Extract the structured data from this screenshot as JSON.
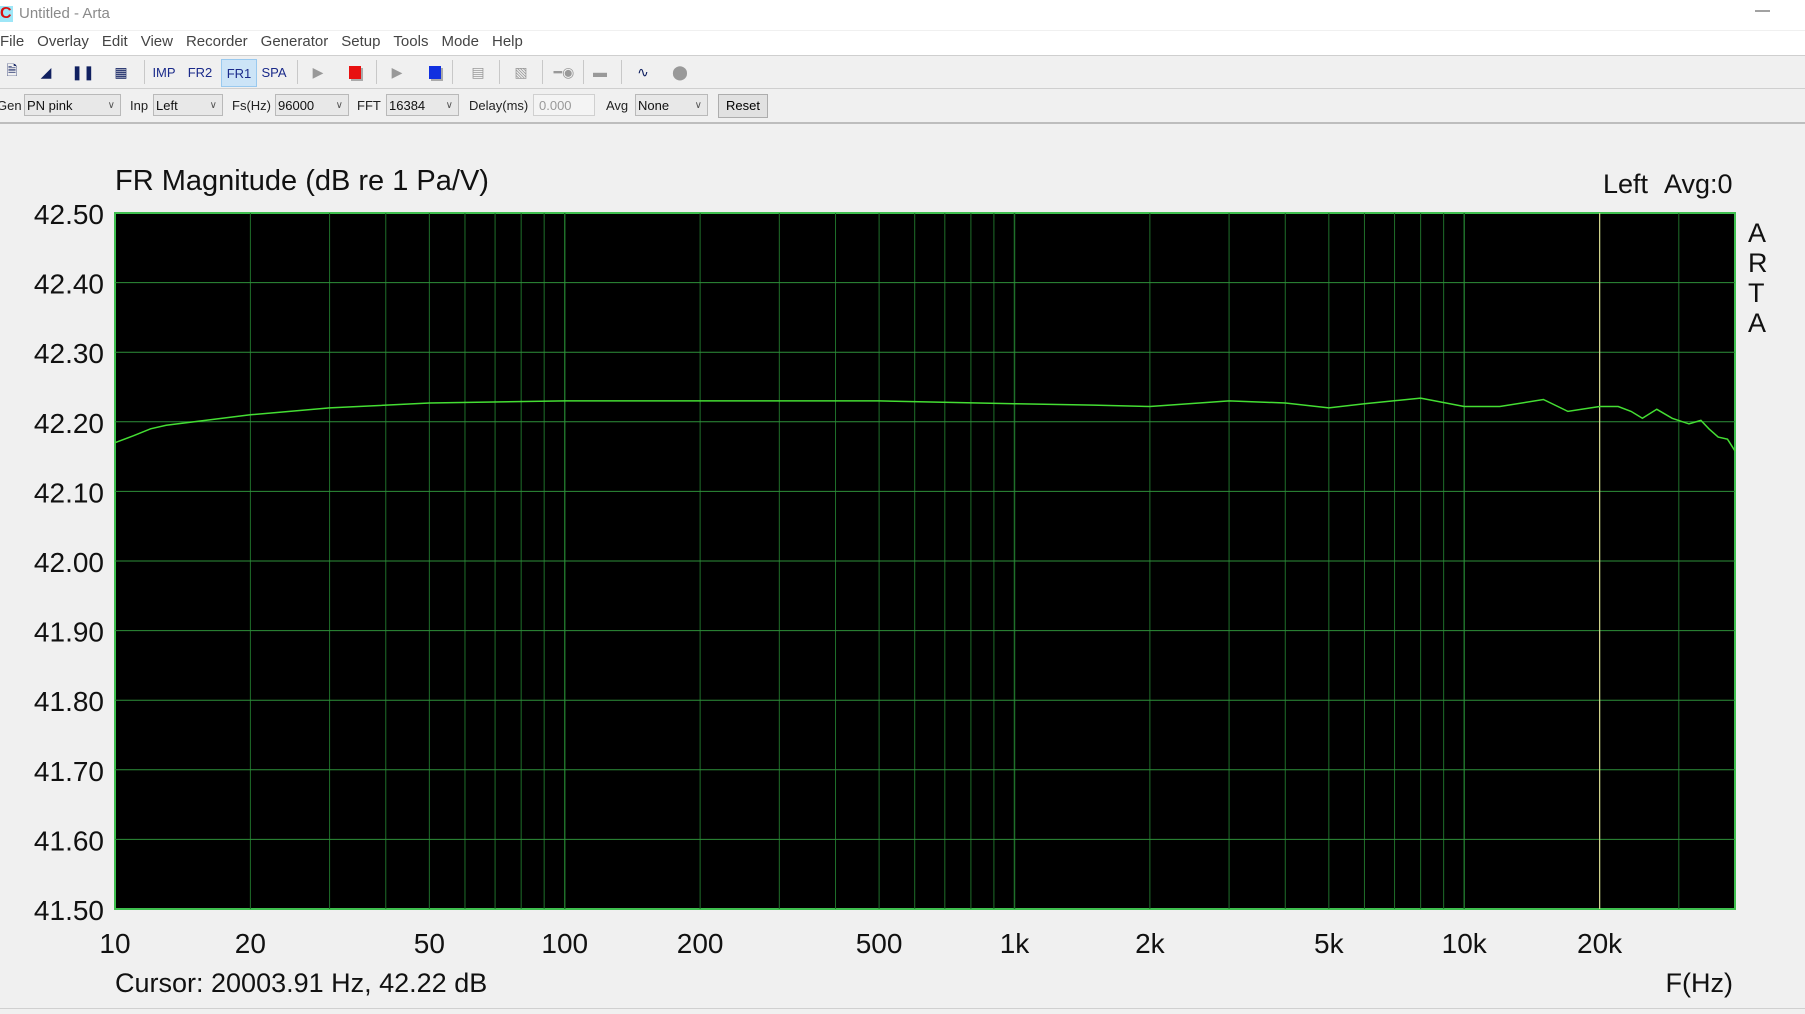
{
  "window": {
    "title": "Untitled - Arta",
    "minimize": "—"
  },
  "menu": [
    "File",
    "Overlay",
    "Edit",
    "View",
    "Recorder",
    "Generator",
    "Setup",
    "Tools",
    "Mode",
    "Help"
  ],
  "toolbar": {
    "buttons": [
      {
        "icon": "new-document-icon"
      },
      {
        "icon": "flag-icon"
      },
      {
        "icon": "pause-icon"
      },
      {
        "icon": "grid-icon"
      },
      {
        "label": "IMP"
      },
      {
        "label": "FR2"
      },
      {
        "label": "FR1",
        "active": true
      },
      {
        "label": "SPA"
      },
      {
        "icon": "play-icon"
      },
      {
        "icon": "stop-red-icon",
        "color": "#e81010"
      },
      {
        "icon": "play-icon"
      },
      {
        "icon": "stop-blue-icon",
        "color": "#1030e0"
      },
      {
        "icon": "abc-icon"
      },
      {
        "icon": "meter-icon"
      },
      {
        "icon": "key-icon"
      },
      {
        "icon": "record-icon"
      },
      {
        "icon": "scope-icon"
      },
      {
        "icon": "circle-icon"
      }
    ]
  },
  "controls": {
    "gen_label": "Gen",
    "gen_value": "PN pink",
    "inp_label": "Inp",
    "inp_value": "Left",
    "fs_label": "Fs(Hz)",
    "fs_value": "96000",
    "fft_label": "FFT",
    "fft_value": "16384",
    "delay_label": "Delay(ms)",
    "delay_value": "0.000",
    "avg_label": "Avg",
    "avg_value": "None",
    "reset": "Reset"
  },
  "chart_data": {
    "type": "line",
    "title": "FR Magnitude (dB re 1 Pa/V)",
    "channel_label": "Left",
    "avg_label": "Avg:0",
    "watermark": "ARTA",
    "xlabel": "F(Hz)",
    "xscale": "log",
    "xlim": [
      10,
      40000
    ],
    "ylim": [
      41.5,
      42.5
    ],
    "grid": true,
    "background": "#000000",
    "grid_color": "#1f6f2a",
    "line_color": "#44dd33",
    "cursor_color": "#d8d890",
    "x_ticks": [
      {
        "v": 10,
        "label": "10"
      },
      {
        "v": 20,
        "label": "20"
      },
      {
        "v": 50,
        "label": "50"
      },
      {
        "v": 100,
        "label": "100"
      },
      {
        "v": 200,
        "label": "200"
      },
      {
        "v": 500,
        "label": "500"
      },
      {
        "v": 1000,
        "label": "1k"
      },
      {
        "v": 2000,
        "label": "2k"
      },
      {
        "v": 5000,
        "label": "5k"
      },
      {
        "v": 10000,
        "label": "10k"
      },
      {
        "v": 20000,
        "label": "20k"
      }
    ],
    "y_ticks": [
      "42.50",
      "42.40",
      "42.30",
      "42.20",
      "42.10",
      "42.00",
      "41.90",
      "41.80",
      "41.70",
      "41.60",
      "41.50"
    ],
    "cursor": {
      "freq": 20003.91,
      "text": "Cursor: 20003.91 Hz, 42.22 dB"
    },
    "series": [
      {
        "x": [
          10,
          11,
          12,
          13,
          15,
          20,
          30,
          50,
          100,
          200,
          500,
          1000,
          1500,
          2000,
          3000,
          4000,
          5000,
          6000,
          8000,
          10000,
          12000,
          15000,
          17000,
          20000,
          22000,
          23500,
          24900,
          26800,
          29000,
          31600,
          33600,
          35000,
          36700,
          38500,
          40000
        ],
        "y": [
          42.17,
          42.18,
          42.19,
          42.195,
          42.2,
          42.21,
          42.22,
          42.227,
          42.23,
          42.23,
          42.23,
          42.226,
          42.224,
          42.222,
          42.23,
          42.227,
          42.22,
          42.226,
          42.234,
          42.222,
          42.222,
          42.232,
          42.215,
          42.222,
          42.222,
          42.215,
          42.205,
          42.218,
          42.205,
          42.197,
          42.202,
          42.19,
          42.178,
          42.175,
          42.158
        ]
      }
    ]
  }
}
